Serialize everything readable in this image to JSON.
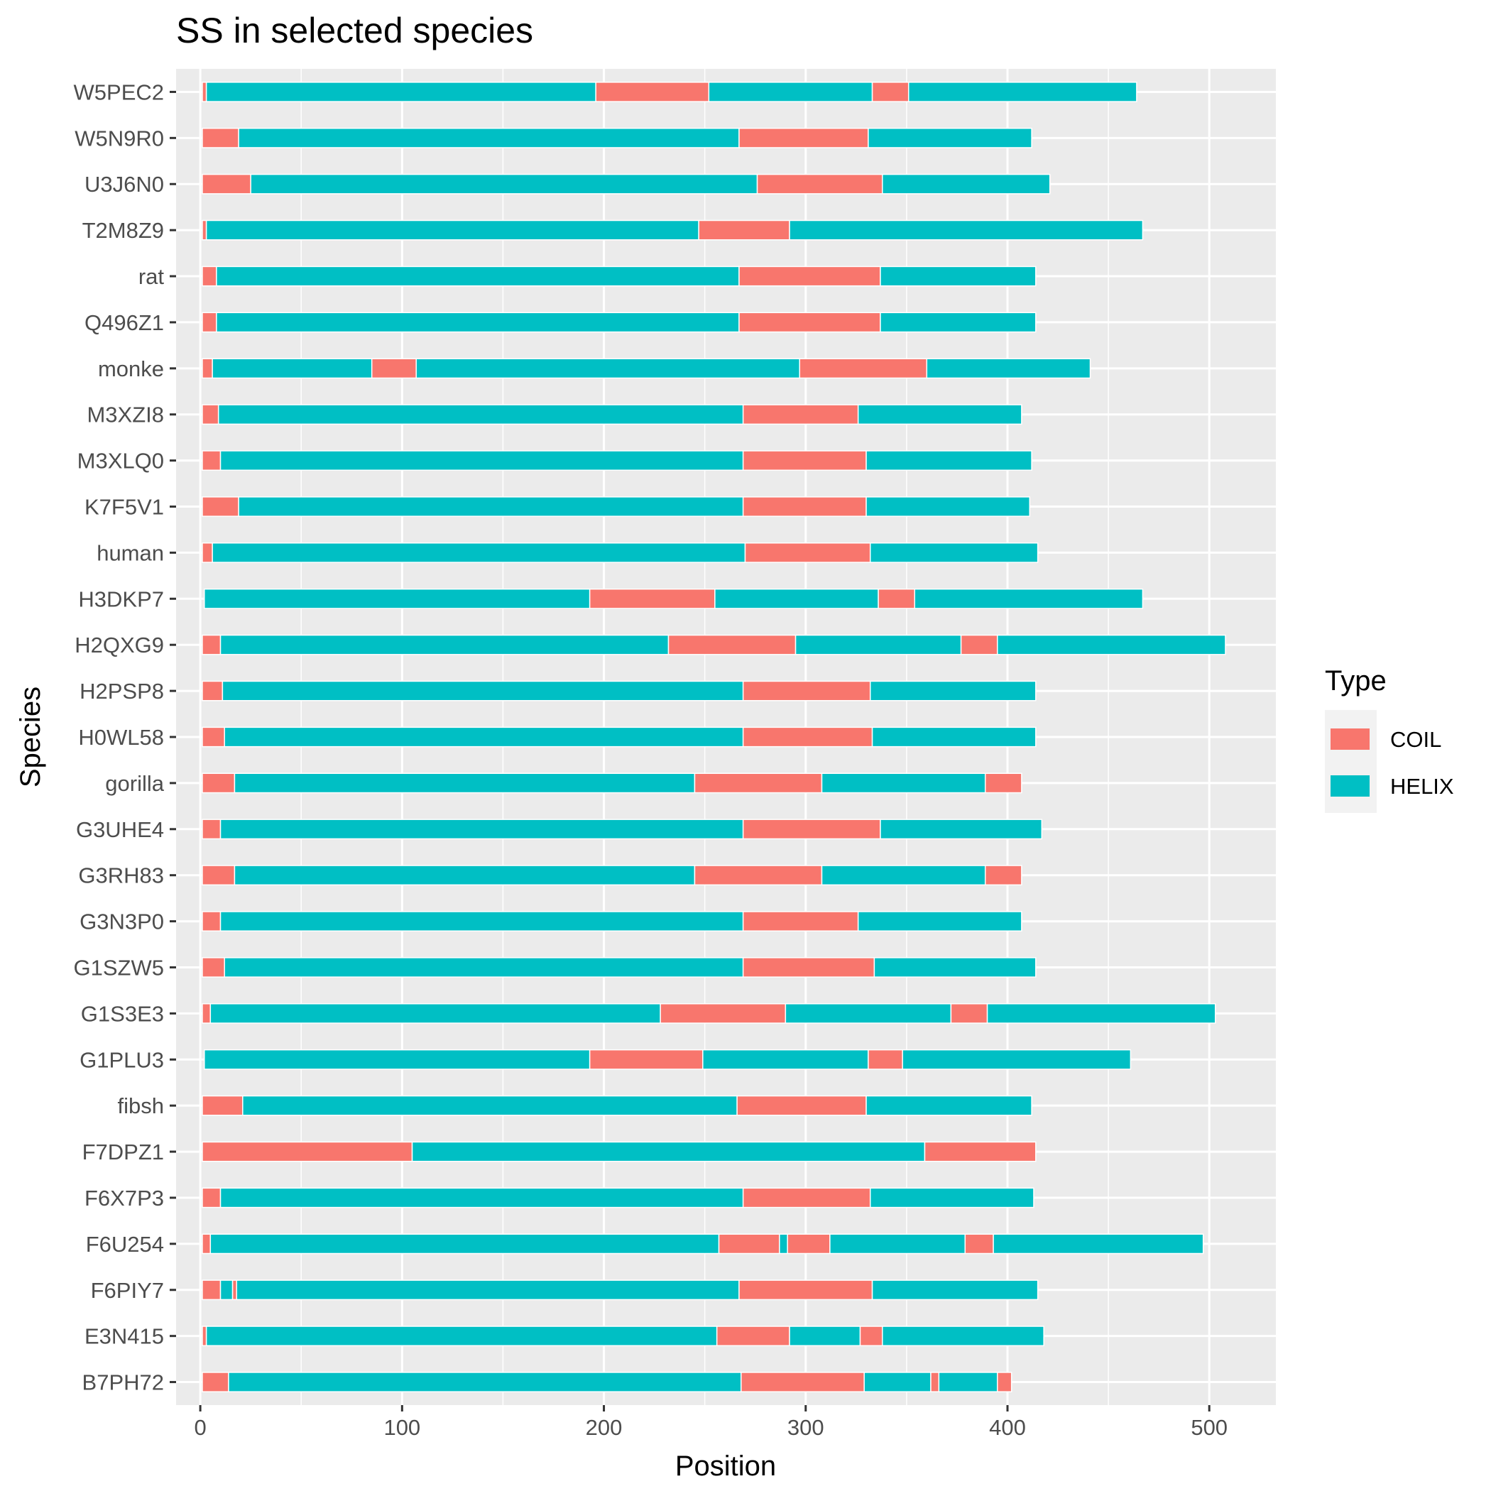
{
  "chart_data": {
    "type": "bar",
    "orientation": "horizontal-segments",
    "title": "SS in selected species",
    "xlabel": "Position",
    "ylabel": "Species",
    "xlim": [
      -12,
      533
    ],
    "x_ticks": [
      0,
      100,
      200,
      300,
      400,
      500
    ],
    "grid": true,
    "legend": {
      "title": "Type",
      "placement": "right",
      "entries": [
        {
          "name": "COIL",
          "color": "#F8766D"
        },
        {
          "name": "HELIX",
          "color": "#00BFC4"
        }
      ]
    },
    "categories": [
      "W5PEC2",
      "W5N9R0",
      "U3J6N0",
      "T2M8Z9",
      "rat",
      "Q496Z1",
      "monke",
      "M3XZI8",
      "M3XLQ0",
      "K7F5V1",
      "human",
      "H3DKP7",
      "H2QXG9",
      "H2PSP8",
      "H0WL58",
      "gorilla",
      "G3UHE4",
      "G3RH83",
      "G3N3P0",
      "G1SZW5",
      "G1S3E3",
      "G1PLU3",
      "fibsh",
      "F7DPZ1",
      "F6X7P3",
      "F6U254",
      "F6PIY7",
      "E3N415",
      "B7PH72"
    ],
    "series": [
      {
        "category": "W5PEC2",
        "segments": [
          [
            "COIL",
            1,
            3
          ],
          [
            "HELIX",
            3,
            196
          ],
          [
            "COIL",
            196,
            252
          ],
          [
            "HELIX",
            252,
            333
          ],
          [
            "COIL",
            333,
            351
          ],
          [
            "HELIX",
            351,
            464
          ]
        ]
      },
      {
        "category": "W5N9R0",
        "segments": [
          [
            "COIL",
            1,
            19
          ],
          [
            "HELIX",
            19,
            267
          ],
          [
            "COIL",
            267,
            331
          ],
          [
            "HELIX",
            331,
            412
          ]
        ]
      },
      {
        "category": "U3J6N0",
        "segments": [
          [
            "COIL",
            1,
            25
          ],
          [
            "HELIX",
            25,
            276
          ],
          [
            "COIL",
            276,
            338
          ],
          [
            "HELIX",
            338,
            421
          ]
        ]
      },
      {
        "category": "T2M8Z9",
        "segments": [
          [
            "COIL",
            1,
            3
          ],
          [
            "HELIX",
            3,
            247
          ],
          [
            "COIL",
            247,
            292
          ],
          [
            "HELIX",
            292,
            467
          ]
        ]
      },
      {
        "category": "rat",
        "segments": [
          [
            "COIL",
            1,
            8
          ],
          [
            "HELIX",
            8,
            267
          ],
          [
            "COIL",
            267,
            337
          ],
          [
            "HELIX",
            337,
            414
          ]
        ]
      },
      {
        "category": "Q496Z1",
        "segments": [
          [
            "COIL",
            1,
            8
          ],
          [
            "HELIX",
            8,
            267
          ],
          [
            "COIL",
            267,
            337
          ],
          [
            "HELIX",
            337,
            414
          ]
        ]
      },
      {
        "category": "monke",
        "segments": [
          [
            "COIL",
            1,
            6
          ],
          [
            "HELIX",
            6,
            85
          ],
          [
            "COIL",
            85,
            107
          ],
          [
            "HELIX",
            107,
            297
          ],
          [
            "COIL",
            297,
            360
          ],
          [
            "HELIX",
            360,
            441
          ]
        ]
      },
      {
        "category": "M3XZI8",
        "segments": [
          [
            "COIL",
            1,
            9
          ],
          [
            "HELIX",
            9,
            269
          ],
          [
            "COIL",
            269,
            326
          ],
          [
            "HELIX",
            326,
            407
          ]
        ]
      },
      {
        "category": "M3XLQ0",
        "segments": [
          [
            "COIL",
            1,
            10
          ],
          [
            "HELIX",
            10,
            269
          ],
          [
            "COIL",
            269,
            330
          ],
          [
            "HELIX",
            330,
            412
          ]
        ]
      },
      {
        "category": "K7F5V1",
        "segments": [
          [
            "COIL",
            1,
            19
          ],
          [
            "HELIX",
            19,
            269
          ],
          [
            "COIL",
            269,
            330
          ],
          [
            "HELIX",
            330,
            411
          ]
        ]
      },
      {
        "category": "human",
        "segments": [
          [
            "COIL",
            1,
            6
          ],
          [
            "HELIX",
            6,
            270
          ],
          [
            "COIL",
            270,
            332
          ],
          [
            "HELIX",
            332,
            415
          ]
        ]
      },
      {
        "category": "H3DKP7",
        "segments": [
          [
            "HELIX",
            2,
            193
          ],
          [
            "COIL",
            193,
            255
          ],
          [
            "HELIX",
            255,
            336
          ],
          [
            "COIL",
            336,
            354
          ],
          [
            "HELIX",
            354,
            467
          ]
        ]
      },
      {
        "category": "H2QXG9",
        "segments": [
          [
            "COIL",
            1,
            10
          ],
          [
            "HELIX",
            10,
            232
          ],
          [
            "COIL",
            232,
            295
          ],
          [
            "HELIX",
            295,
            377
          ],
          [
            "COIL",
            377,
            395
          ],
          [
            "HELIX",
            395,
            508
          ]
        ]
      },
      {
        "category": "H2PSP8",
        "segments": [
          [
            "COIL",
            1,
            11
          ],
          [
            "HELIX",
            11,
            269
          ],
          [
            "COIL",
            269,
            332
          ],
          [
            "HELIX",
            332,
            414
          ]
        ]
      },
      {
        "category": "H0WL58",
        "segments": [
          [
            "COIL",
            1,
            12
          ],
          [
            "HELIX",
            12,
            269
          ],
          [
            "COIL",
            269,
            333
          ],
          [
            "HELIX",
            333,
            414
          ]
        ]
      },
      {
        "category": "gorilla",
        "segments": [
          [
            "COIL",
            1,
            17
          ],
          [
            "HELIX",
            17,
            245
          ],
          [
            "COIL",
            245,
            308
          ],
          [
            "HELIX",
            308,
            389
          ],
          [
            "COIL",
            389,
            407
          ]
        ]
      },
      {
        "category": "G3UHE4",
        "segments": [
          [
            "COIL",
            1,
            10
          ],
          [
            "HELIX",
            10,
            269
          ],
          [
            "COIL",
            269,
            337
          ],
          [
            "HELIX",
            337,
            417
          ]
        ]
      },
      {
        "category": "G3RH83",
        "segments": [
          [
            "COIL",
            1,
            17
          ],
          [
            "HELIX",
            17,
            245
          ],
          [
            "COIL",
            245,
            308
          ],
          [
            "HELIX",
            308,
            389
          ],
          [
            "COIL",
            389,
            407
          ]
        ]
      },
      {
        "category": "G3N3P0",
        "segments": [
          [
            "COIL",
            1,
            10
          ],
          [
            "HELIX",
            10,
            269
          ],
          [
            "COIL",
            269,
            326
          ],
          [
            "HELIX",
            326,
            407
          ]
        ]
      },
      {
        "category": "G1SZW5",
        "segments": [
          [
            "COIL",
            1,
            12
          ],
          [
            "HELIX",
            12,
            269
          ],
          [
            "COIL",
            269,
            334
          ],
          [
            "HELIX",
            334,
            414
          ]
        ]
      },
      {
        "category": "G1S3E3",
        "segments": [
          [
            "COIL",
            1,
            5
          ],
          [
            "HELIX",
            5,
            228
          ],
          [
            "COIL",
            228,
            290
          ],
          [
            "HELIX",
            290,
            372
          ],
          [
            "COIL",
            372,
            390
          ],
          [
            "HELIX",
            390,
            503
          ]
        ]
      },
      {
        "category": "G1PLU3",
        "segments": [
          [
            "HELIX",
            2,
            193
          ],
          [
            "COIL",
            193,
            249
          ],
          [
            "HELIX",
            249,
            331
          ],
          [
            "COIL",
            331,
            348
          ],
          [
            "HELIX",
            348,
            461
          ]
        ]
      },
      {
        "category": "fibsh",
        "segments": [
          [
            "COIL",
            1,
            21
          ],
          [
            "HELIX",
            21,
            266
          ],
          [
            "COIL",
            266,
            330
          ],
          [
            "HELIX",
            330,
            412
          ]
        ]
      },
      {
        "category": "F7DPZ1",
        "segments": [
          [
            "COIL",
            1,
            105
          ],
          [
            "HELIX",
            105,
            359
          ],
          [
            "COIL",
            359,
            414
          ]
        ]
      },
      {
        "category": "F6X7P3",
        "segments": [
          [
            "COIL",
            1,
            10
          ],
          [
            "HELIX",
            10,
            269
          ],
          [
            "COIL",
            269,
            332
          ],
          [
            "HELIX",
            332,
            413
          ]
        ]
      },
      {
        "category": "F6U254",
        "segments": [
          [
            "COIL",
            1,
            5
          ],
          [
            "HELIX",
            5,
            257
          ],
          [
            "COIL",
            257,
            287
          ],
          [
            "HELIX",
            287,
            291
          ],
          [
            "COIL",
            291,
            312
          ],
          [
            "HELIX",
            312,
            379
          ],
          [
            "COIL",
            379,
            393
          ],
          [
            "HELIX",
            393,
            497
          ]
        ]
      },
      {
        "category": "F6PIY7",
        "segments": [
          [
            "COIL",
            1,
            10
          ],
          [
            "HELIX",
            10,
            16
          ],
          [
            "COIL",
            16,
            18
          ],
          [
            "HELIX",
            18,
            267
          ],
          [
            "COIL",
            267,
            333
          ],
          [
            "HELIX",
            333,
            415
          ]
        ]
      },
      {
        "category": "E3N415",
        "segments": [
          [
            "COIL",
            1,
            3
          ],
          [
            "HELIX",
            3,
            256
          ],
          [
            "COIL",
            256,
            292
          ],
          [
            "HELIX",
            292,
            327
          ],
          [
            "COIL",
            327,
            338
          ],
          [
            "HELIX",
            338,
            418
          ]
        ]
      },
      {
        "category": "B7PH72",
        "segments": [
          [
            "COIL",
            1,
            14
          ],
          [
            "HELIX",
            14,
            268
          ],
          [
            "COIL",
            268,
            329
          ],
          [
            "HELIX",
            329,
            362
          ],
          [
            "COIL",
            362,
            366
          ],
          [
            "HELIX",
            366,
            395
          ],
          [
            "COIL",
            395,
            402
          ]
        ]
      }
    ]
  }
}
